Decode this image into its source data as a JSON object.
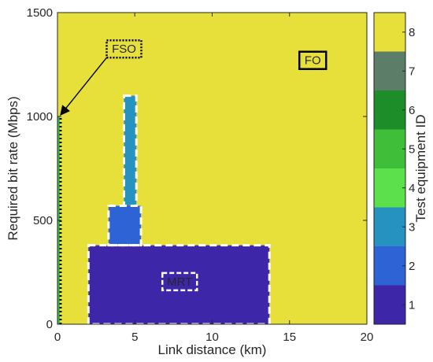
{
  "chart_data": {
    "type": "heatmap",
    "xlabel": "Link distance (km)",
    "ylabel": "Required bit rate (Mbps)",
    "colorbar_label": "Test equipment ID",
    "xlim": [
      0,
      20
    ],
    "ylim": [
      0,
      1500
    ],
    "clim": [
      0.5,
      8.5
    ],
    "x_ticks": [
      "0",
      "5",
      "10",
      "15",
      "20"
    ],
    "y_ticks": [
      "0",
      "500",
      "1000",
      "1500"
    ],
    "colorbar_ticks": [
      "1",
      "2",
      "3",
      "4",
      "5",
      "6",
      "7",
      "8"
    ],
    "background_id": 8,
    "colormap": [
      {
        "id": 1,
        "color": "#3e26a8"
      },
      {
        "id": 2,
        "color": "#2e63d6"
      },
      {
        "id": 3,
        "color": "#2692c0"
      },
      {
        "id": 4,
        "color": "#5ce04c"
      },
      {
        "id": 5,
        "color": "#3fbf39"
      },
      {
        "id": 6,
        "color": "#1d8d2a"
      },
      {
        "id": 7,
        "color": "#5c7e68"
      },
      {
        "id": 8,
        "color": "#e7e03a"
      }
    ],
    "regions": [
      {
        "id": 1,
        "x": [
          2.0,
          13.7
        ],
        "y": [
          0,
          380
        ]
      },
      {
        "id": 2,
        "x": [
          3.3,
          5.4
        ],
        "y": [
          380,
          570
        ]
      },
      {
        "id": 3,
        "x": [
          4.3,
          5.1
        ],
        "y": [
          570,
          1100
        ]
      },
      {
        "id": 5,
        "x": [
          0,
          0.15
        ],
        "y": [
          0,
          1000
        ]
      }
    ],
    "annotations": [
      {
        "label": "MRT",
        "style": "dashed-white",
        "x": 7.9,
        "y": 205
      },
      {
        "label": "FSO",
        "style": "dotted-black",
        "x": 4.3,
        "y": 1325,
        "arrow_to": [
          0.1,
          1000
        ]
      },
      {
        "label": "FO",
        "style": "solid-black",
        "x": 16.5,
        "y": 1270
      }
    ]
  }
}
